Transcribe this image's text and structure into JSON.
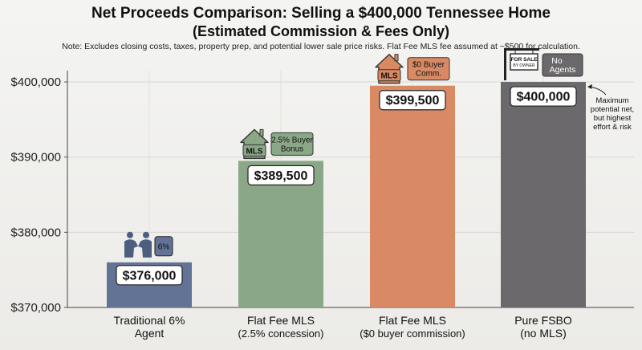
{
  "header": {
    "title": "Net Proceeds Comparison: Selling a $400,000 Tennessee Home",
    "subtitle": "(Estimated Commission & Fees Only)",
    "note": "Note: Excludes closing costs, taxes, property prep, and potential lower sale price risks. Flat Fee MLS fee assumed at ~$500 for calculation."
  },
  "chart_data": {
    "type": "bar",
    "categories": [
      [
        "Traditional 6%",
        "Agent"
      ],
      [
        "Flat Fee MLS",
        "(2.5% concession)"
      ],
      [
        "Flat Fee MLS",
        "($0 buyer commission)"
      ],
      [
        "Pure FSBO",
        "(no MLS)"
      ]
    ],
    "values": [
      376000,
      389500,
      399500,
      400000
    ],
    "value_labels": [
      "$376,000",
      "$389,500",
      "$399,500",
      "$400,000"
    ],
    "ylim": [
      370000,
      401500
    ],
    "yticks": [
      370000,
      380000,
      390000,
      400000
    ],
    "ytick_labels": [
      "$370,000",
      "$380,000",
      "$390,000",
      "$400,000"
    ],
    "grid": true,
    "colors": [
      "#627395",
      "#8aa887",
      "#d98a64",
      "#6b696c"
    ],
    "badges": [
      {
        "icon": "handshake-icon",
        "lines": [
          "6%"
        ]
      },
      {
        "icon": "house-mls-icon",
        "icon_text": "MLS",
        "lines": [
          "2.5% Buyer",
          "Bonus"
        ]
      },
      {
        "icon": "house-mls-icon",
        "icon_text": "MLS",
        "lines": [
          "$0 Buyer",
          "Comm."
        ]
      },
      {
        "icon": "for-sale-sign-icon",
        "icon_lines": [
          "FOR SALE",
          "BY OWNER"
        ],
        "lines": [
          "No",
          "Agents"
        ]
      }
    ],
    "annotation": {
      "lines": [
        "Maximum",
        "potential net,",
        "but highest",
        "effort & risk"
      ],
      "target": 3
    }
  }
}
